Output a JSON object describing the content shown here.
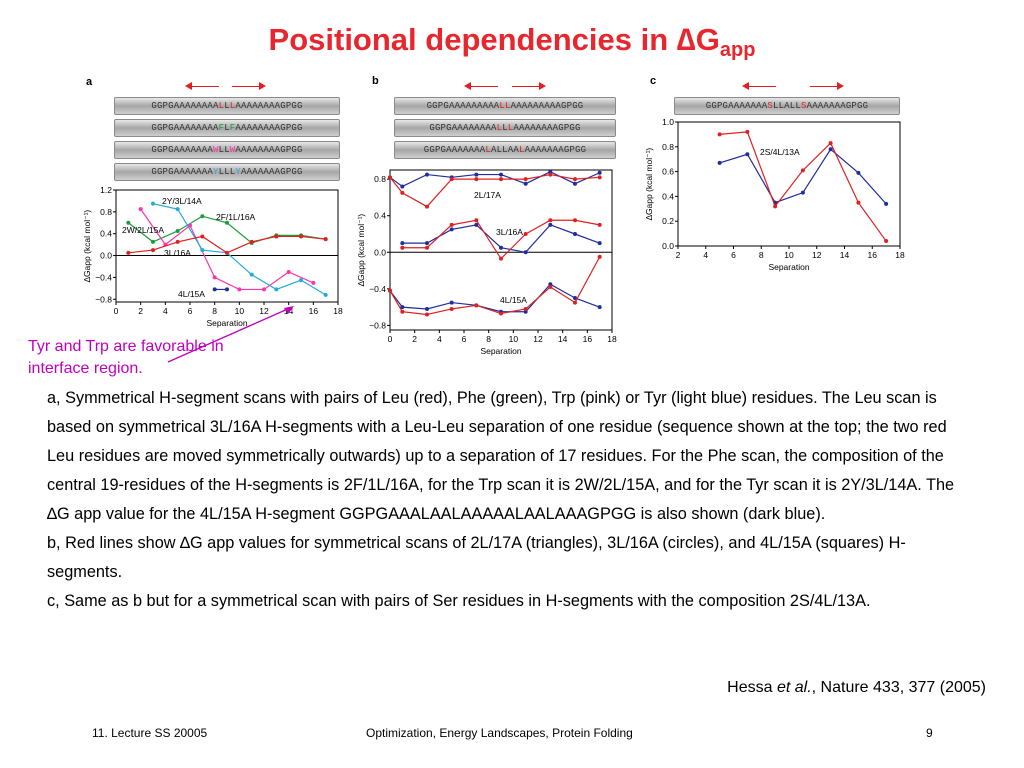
{
  "title": {
    "main": "Positional dependencies in ",
    "delta": "∆",
    "g": "G",
    "sub": "app"
  },
  "panels": {
    "a": {
      "label": "a",
      "sequences": [
        {
          "pre": "GGPGAAAAAAAA",
          "mid": "LLL",
          "mid_colored": [
            {
              "t": "L",
              "c": "#e02020"
            },
            {
              "t": "L",
              "c": "#333333"
            },
            {
              "t": "L",
              "c": "#e02020"
            }
          ],
          "post": "AAAAAAAAGPGG"
        },
        {
          "segments": [
            {
              "t": "GGPGAAAAAAAA",
              "c": "#333333"
            },
            {
              "t": "F",
              "c": "#1b9e3a"
            },
            {
              "t": "L",
              "c": "#333333"
            },
            {
              "t": "F",
              "c": "#1b9e3a"
            },
            {
              "t": "AAAAAAAAGPGG",
              "c": "#333333"
            }
          ]
        },
        {
          "segments": [
            {
              "t": "GGPGAAAAAAA",
              "c": "#333333"
            },
            {
              "t": "W",
              "c": "#ff33aa"
            },
            {
              "t": "LL",
              "c": "#333333"
            },
            {
              "t": "W",
              "c": "#ff33aa"
            },
            {
              "t": "AAAAAAAAGPGG",
              "c": "#333333"
            }
          ]
        },
        {
          "segments": [
            {
              "t": "GGPGAAAAAAA",
              "c": "#333333"
            },
            {
              "t": "Y",
              "c": "#22aadd"
            },
            {
              "t": "LLL",
              "c": "#333333"
            },
            {
              "t": "Y",
              "c": "#22aadd"
            },
            {
              "t": "AAAAAAAGPGG",
              "c": "#333333"
            }
          ]
        }
      ]
    },
    "b": {
      "label": "b",
      "sequences": [
        {
          "segments": [
            {
              "t": "GGPGAAAAAAAAA",
              "c": "#333333"
            },
            {
              "t": "LL",
              "c": "#e02020"
            },
            {
              "t": "AAAAAAAAAGPGG",
              "c": "#333333"
            }
          ]
        },
        {
          "segments": [
            {
              "t": "GGPGAAAAAAAA",
              "c": "#333333"
            },
            {
              "t": "L",
              "c": "#e02020"
            },
            {
              "t": "L",
              "c": "#333333"
            },
            {
              "t": "L",
              "c": "#e02020"
            },
            {
              "t": "AAAAAAAAGPGG",
              "c": "#333333"
            }
          ]
        },
        {
          "segments": [
            {
              "t": "GGPGAAAAAAA",
              "c": "#333333"
            },
            {
              "t": "L",
              "c": "#e02020"
            },
            {
              "t": "ALLAA",
              "c": "#333333"
            },
            {
              "t": "L",
              "c": "#e02020"
            },
            {
              "t": "AAAAAAAGPGG",
              "c": "#333333"
            }
          ]
        }
      ]
    },
    "c": {
      "label": "c",
      "sequences": [
        {
          "segments": [
            {
              "t": "GGPGAAAAAAA",
              "c": "#333333"
            },
            {
              "t": "S",
              "c": "#e02020"
            },
            {
              "t": "LLALL",
              "c": "#333333"
            },
            {
              "t": "S",
              "c": "#e02020"
            },
            {
              "t": "AAAAAAAGPGG",
              "c": "#333333"
            }
          ]
        }
      ]
    }
  },
  "chart_data": [
    {
      "type": "line",
      "panel": "a",
      "xlabel": "Separation",
      "ylabel": "∆Gapp (kcal mol⁻¹)",
      "xlim": [
        0,
        18
      ],
      "ylim": [
        -0.85,
        1.2
      ],
      "xticks": [
        "0",
        "2",
        "4",
        "6",
        "8",
        "10",
        "12",
        "14",
        "16",
        "18"
      ],
      "yticks": [
        "1.2",
        "0.8",
        "0.4",
        "0.0",
        "−0.4",
        "−0.8"
      ],
      "series": [
        {
          "name": "2F/1L/16A",
          "color": "#1b9e3a",
          "x": [
            1,
            3,
            5,
            7,
            9,
            11,
            13,
            15,
            17
          ],
          "y": [
            0.6,
            0.25,
            0.45,
            0.72,
            0.6,
            0.23,
            0.37,
            0.37,
            0.3
          ]
        },
        {
          "name": "2W/2L/15A",
          "color": "#ff33aa",
          "x": [
            2,
            4,
            6,
            8,
            10,
            12,
            14,
            16
          ],
          "y": [
            0.85,
            0.2,
            0.55,
            -0.4,
            -0.62,
            -0.62,
            -0.3,
            -0.5
          ]
        },
        {
          "name": "2Y/3L/14A",
          "color": "#22aadd",
          "x": [
            3,
            5,
            7,
            9,
            11,
            13,
            15,
            17
          ],
          "y": [
            0.95,
            0.85,
            0.1,
            0.05,
            -0.35,
            -0.62,
            -0.45,
            -0.72
          ]
        },
        {
          "name": "3L/16A",
          "color": "#e02020",
          "x": [
            1,
            3,
            5,
            7,
            9,
            11,
            13,
            15,
            17
          ],
          "y": [
            0.05,
            0.1,
            0.25,
            0.35,
            0.05,
            0.25,
            0.35,
            0.35,
            0.3
          ]
        },
        {
          "name": "4L/15A",
          "color": "#1f2d9e",
          "x": [
            8,
            9
          ],
          "y": [
            -0.62,
            -0.62
          ]
        }
      ],
      "annotations": [
        "2Y/3L/14A",
        "2F/1L/16A",
        "2W/2L/15A",
        "3L/16A",
        "4L/15A"
      ]
    },
    {
      "type": "line",
      "panel": "b",
      "xlabel": "Separation",
      "ylabel": "∆Gapp (kcal mol⁻¹)",
      "xlim": [
        0,
        18
      ],
      "ylim": [
        -0.85,
        0.9
      ],
      "xticks": [
        "0",
        "2",
        "4",
        "6",
        "8",
        "10",
        "12",
        "14",
        "16",
        "18"
      ],
      "yticks": [
        "0.8",
        "0.4",
        "0.0",
        "−0.4",
        "−0.8"
      ],
      "series": [
        {
          "name": "2L/17A blue",
          "color": "#1f2d9e",
          "x": [
            0,
            1,
            3,
            5,
            7,
            9,
            11,
            13,
            15,
            17
          ],
          "y": [
            0.82,
            0.72,
            0.85,
            0.82,
            0.85,
            0.85,
            0.75,
            0.88,
            0.75,
            0.87
          ]
        },
        {
          "name": "2L/17A red",
          "color": "#e02020",
          "x": [
            0,
            1,
            3,
            5,
            7,
            9,
            11,
            13,
            15,
            17
          ],
          "y": [
            0.82,
            0.65,
            0.5,
            0.8,
            0.8,
            0.8,
            0.8,
            0.85,
            0.8,
            0.82
          ]
        },
        {
          "name": "3L/16A blue",
          "color": "#1f2d9e",
          "x": [
            1,
            3,
            5,
            7,
            9,
            11,
            13,
            15,
            17
          ],
          "y": [
            0.1,
            0.1,
            0.25,
            0.3,
            0.05,
            0.0,
            0.3,
            0.2,
            0.1
          ]
        },
        {
          "name": "3L/16A red",
          "color": "#e02020",
          "x": [
            1,
            3,
            5,
            7,
            9,
            11,
            13,
            15,
            17
          ],
          "y": [
            0.05,
            0.05,
            0.3,
            0.35,
            -0.07,
            0.2,
            0.35,
            0.35,
            0.3
          ]
        },
        {
          "name": "4L/15A blue",
          "color": "#1f2d9e",
          "x": [
            0,
            1,
            3,
            5,
            7,
            9,
            11,
            13,
            15,
            17
          ],
          "y": [
            -0.42,
            -0.6,
            -0.62,
            -0.55,
            -0.58,
            -0.65,
            -0.65,
            -0.35,
            -0.5,
            -0.6
          ]
        },
        {
          "name": "4L/15A red",
          "color": "#e02020",
          "x": [
            0,
            1,
            3,
            5,
            7,
            9,
            11,
            13,
            15,
            17
          ],
          "y": [
            -0.42,
            -0.65,
            -0.68,
            -0.62,
            -0.58,
            -0.67,
            -0.62,
            -0.38,
            -0.55,
            -0.05
          ]
        }
      ],
      "annotations": [
        "2L/17A",
        "3L/16A",
        "4L/15A"
      ]
    },
    {
      "type": "line",
      "panel": "c",
      "xlabel": "Separation",
      "ylabel": "∆Gapp (kcal mol⁻¹)",
      "xlim": [
        2,
        18
      ],
      "ylim": [
        0.0,
        1.0
      ],
      "xticks": [
        "2",
        "4",
        "6",
        "8",
        "10",
        "12",
        "14",
        "16",
        "18"
      ],
      "yticks": [
        "1.0",
        "0.8",
        "0.6",
        "0.4",
        "0.2",
        "0.0"
      ],
      "series": [
        {
          "name": "2S/4L/13A blue",
          "color": "#1f2d9e",
          "x": [
            5,
            7,
            9,
            11,
            13,
            15,
            17
          ],
          "y": [
            0.67,
            0.74,
            0.35,
            0.43,
            0.78,
            0.59,
            0.34
          ]
        },
        {
          "name": "2S/4L/13A red",
          "color": "#e02020",
          "x": [
            5,
            7,
            9,
            11,
            13,
            15,
            17
          ],
          "y": [
            0.9,
            0.92,
            0.32,
            0.61,
            0.83,
            0.35,
            0.04
          ]
        }
      ],
      "annotations": [
        "2S/4L/13A"
      ]
    }
  ],
  "annotation_text": "Tyr and Trp are favorable in interface region.",
  "caption": {
    "a": "a, Symmetrical H-segment scans with pairs of Leu (red), Phe (green), Trp (pink) or Tyr (light blue) residues. The Leu scan is based on symmetrical 3L/16A H-segments with a Leu-Leu separation of one residue (sequence shown at the top; the two red Leu residues are moved symmetrically outwards) up to a separation of 17 residues. For the Phe scan, the composition of the central 19-residues of the H-segments is 2F/1L/16A, for the Trp scan it is 2W/2L/15A, and for the Tyr scan it is 2Y/3L/14A. The ∆G app value for the 4L/15A H-segment GGPGAAALAALAAAAALAALAAAGPGG is also shown (dark blue).",
    "b": "b, Red lines show ∆G app values for symmetrical scans of 2L/17A (triangles), 3L/16A (circles), and 4L/15A (squares) H-segments.",
    "c": "c, Same as b but for a symmetrical scan with pairs of Ser residues in H-segments with the composition 2S/4L/13A."
  },
  "reference": {
    "author": "Hessa ",
    "etal": "et al.",
    "rest": ", Nature 433, 377 (2005)"
  },
  "footer": {
    "left": "11. Lecture SS 20005",
    "center": "Optimization, Energy Landscapes, Protein Folding",
    "page": "9"
  }
}
